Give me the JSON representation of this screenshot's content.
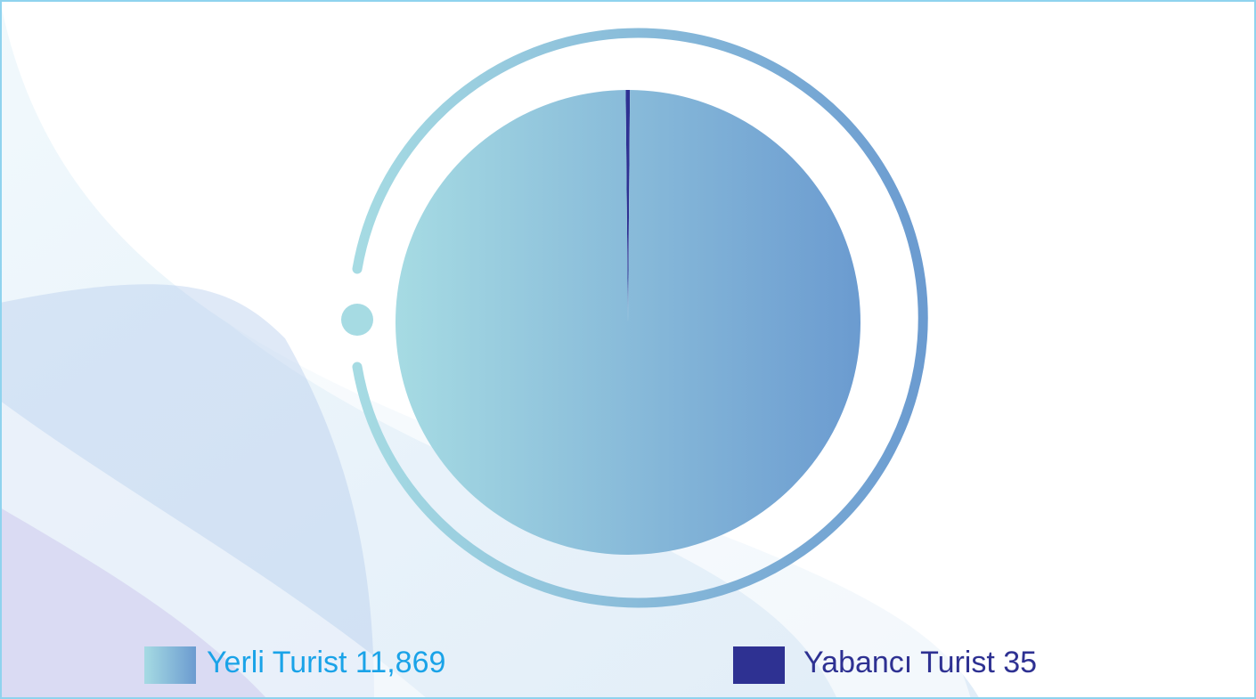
{
  "chart_data": {
    "type": "pie",
    "categories": [
      "Yerli Turist",
      "Yabancı Turist"
    ],
    "values": [
      11869,
      35
    ],
    "value_labels": [
      "11,869",
      "35"
    ],
    "colors": [
      "#6b9bd0",
      "#2e3192"
    ],
    "label_colors": [
      "#1aa3e8",
      "#2e3192"
    ]
  }
}
